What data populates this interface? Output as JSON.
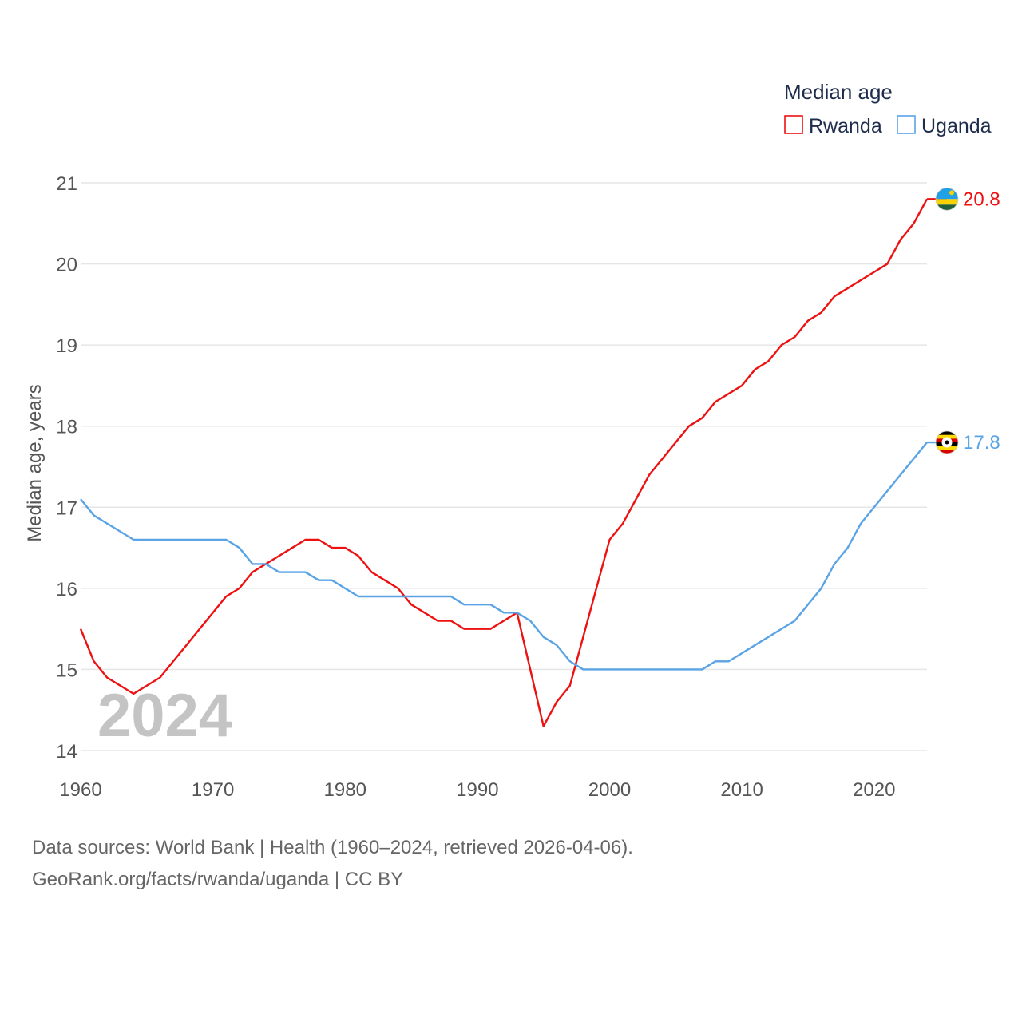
{
  "colors": {
    "rwanda": "#ee1111",
    "uganda": "#5aa4e6",
    "grid": "#e6e6e6",
    "text": "#555555"
  },
  "footer": {
    "sources": "Data sources: World Bank | Health (1960–2024, retrieved 2026-04-06).",
    "credit": "GeoRank.org/facts/rwanda/uganda | CC BY"
  },
  "chart_data": {
    "type": "line",
    "ylabel": "Median age, years",
    "year_label": "2024",
    "legend": {
      "title": "Median age",
      "position": "top-right"
    },
    "xlim": [
      1960,
      2024
    ],
    "ylim": [
      14,
      21
    ],
    "xticks": [
      1960,
      1970,
      1980,
      1990,
      2000,
      2010,
      2020
    ],
    "yticks": [
      14,
      15,
      16,
      17,
      18,
      19,
      20,
      21
    ],
    "x_start": 1960,
    "series": [
      {
        "name": "Rwanda",
        "color": "#ee1111",
        "flag": "rwanda-flag-icon",
        "end_value_label": "20.8",
        "values": [
          15.5,
          15.1,
          14.9,
          14.8,
          14.7,
          14.8,
          14.9,
          15.1,
          15.3,
          15.5,
          15.7,
          15.9,
          16.0,
          16.2,
          16.3,
          16.4,
          16.5,
          16.6,
          16.6,
          16.5,
          16.5,
          16.4,
          16.2,
          16.1,
          16.0,
          15.8,
          15.7,
          15.6,
          15.6,
          15.5,
          15.5,
          15.5,
          15.6,
          15.7,
          15.0,
          14.3,
          14.6,
          14.8,
          15.4,
          16.0,
          16.6,
          16.8,
          17.1,
          17.4,
          17.6,
          17.8,
          18.0,
          18.1,
          18.3,
          18.4,
          18.5,
          18.7,
          18.8,
          19.0,
          19.1,
          19.3,
          19.4,
          19.6,
          19.7,
          19.8,
          19.9,
          20.0,
          20.3,
          20.5,
          20.8
        ]
      },
      {
        "name": "Uganda",
        "color": "#5aa4e6",
        "flag": "uganda-flag-icon",
        "end_value_label": "17.8",
        "values": [
          17.1,
          16.9,
          16.8,
          16.7,
          16.6,
          16.6,
          16.6,
          16.6,
          16.6,
          16.6,
          16.6,
          16.6,
          16.5,
          16.3,
          16.3,
          16.2,
          16.2,
          16.2,
          16.1,
          16.1,
          16.0,
          15.9,
          15.9,
          15.9,
          15.9,
          15.9,
          15.9,
          15.9,
          15.9,
          15.8,
          15.8,
          15.8,
          15.7,
          15.7,
          15.6,
          15.4,
          15.3,
          15.1,
          15.0,
          15.0,
          15.0,
          15.0,
          15.0,
          15.0,
          15.0,
          15.0,
          15.0,
          15.0,
          15.1,
          15.1,
          15.2,
          15.3,
          15.4,
          15.5,
          15.6,
          15.8,
          16.0,
          16.3,
          16.5,
          16.8,
          17.0,
          17.2,
          17.4,
          17.6,
          17.8
        ]
      }
    ]
  }
}
